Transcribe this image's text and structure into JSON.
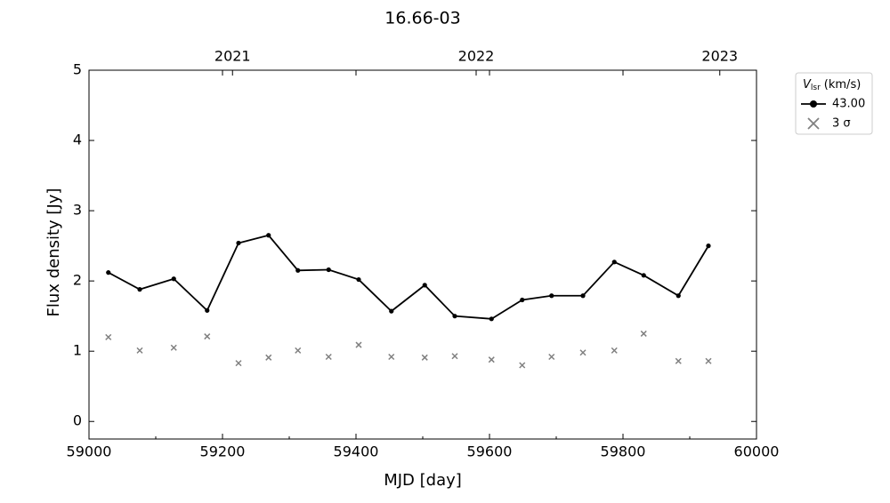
{
  "chart_data": {
    "type": "line",
    "title": "16.66-03",
    "xlabel": "MJD [day]",
    "ylabel": "Flux density [Jy]",
    "x": [
      59029,
      59076,
      59127,
      59177,
      59224,
      59269,
      59313,
      59359,
      59404,
      59453,
      59503,
      59548,
      59603,
      59649,
      59693,
      59740,
      59787,
      59831,
      59883,
      59928
    ],
    "series": [
      {
        "name": "43.00",
        "color": "#000000",
        "marker": "dot-line",
        "values": [
          2.12,
          1.88,
          2.03,
          1.58,
          2.54,
          2.65,
          2.15,
          2.16,
          2.02,
          1.57,
          1.94,
          1.5,
          1.46,
          1.73,
          1.79,
          1.79,
          2.27,
          2.08,
          1.79,
          2.5
        ]
      },
      {
        "name": "3 σ",
        "color": "#808080",
        "marker": "x",
        "values": [
          1.2,
          1.01,
          1.05,
          1.21,
          0.83,
          0.91,
          1.01,
          0.92,
          1.09,
          0.92,
          0.91,
          0.93,
          0.88,
          0.8,
          0.92,
          0.98,
          1.01,
          1.25,
          0.86,
          0.86
        ]
      }
    ],
    "xlim": [
      59000,
      60000
    ],
    "xticks": [
      59000,
      59200,
      59400,
      59600,
      59800,
      60000
    ],
    "xminorticks": [
      59100,
      59300,
      59500,
      59700,
      59900
    ],
    "x2ticks": [
      {
        "value": 59215,
        "label": "2021"
      },
      {
        "value": 59580,
        "label": "2022"
      },
      {
        "value": 59945,
        "label": "2023"
      }
    ],
    "ylim": [
      -0.25,
      5
    ],
    "yticks": [
      0,
      1,
      2,
      3,
      4,
      5
    ],
    "legend_title": {
      "symbol": "V",
      "subscript": "lsr",
      "unit": "(km/s)"
    },
    "legend": "outside-upper-right",
    "grid": false
  }
}
